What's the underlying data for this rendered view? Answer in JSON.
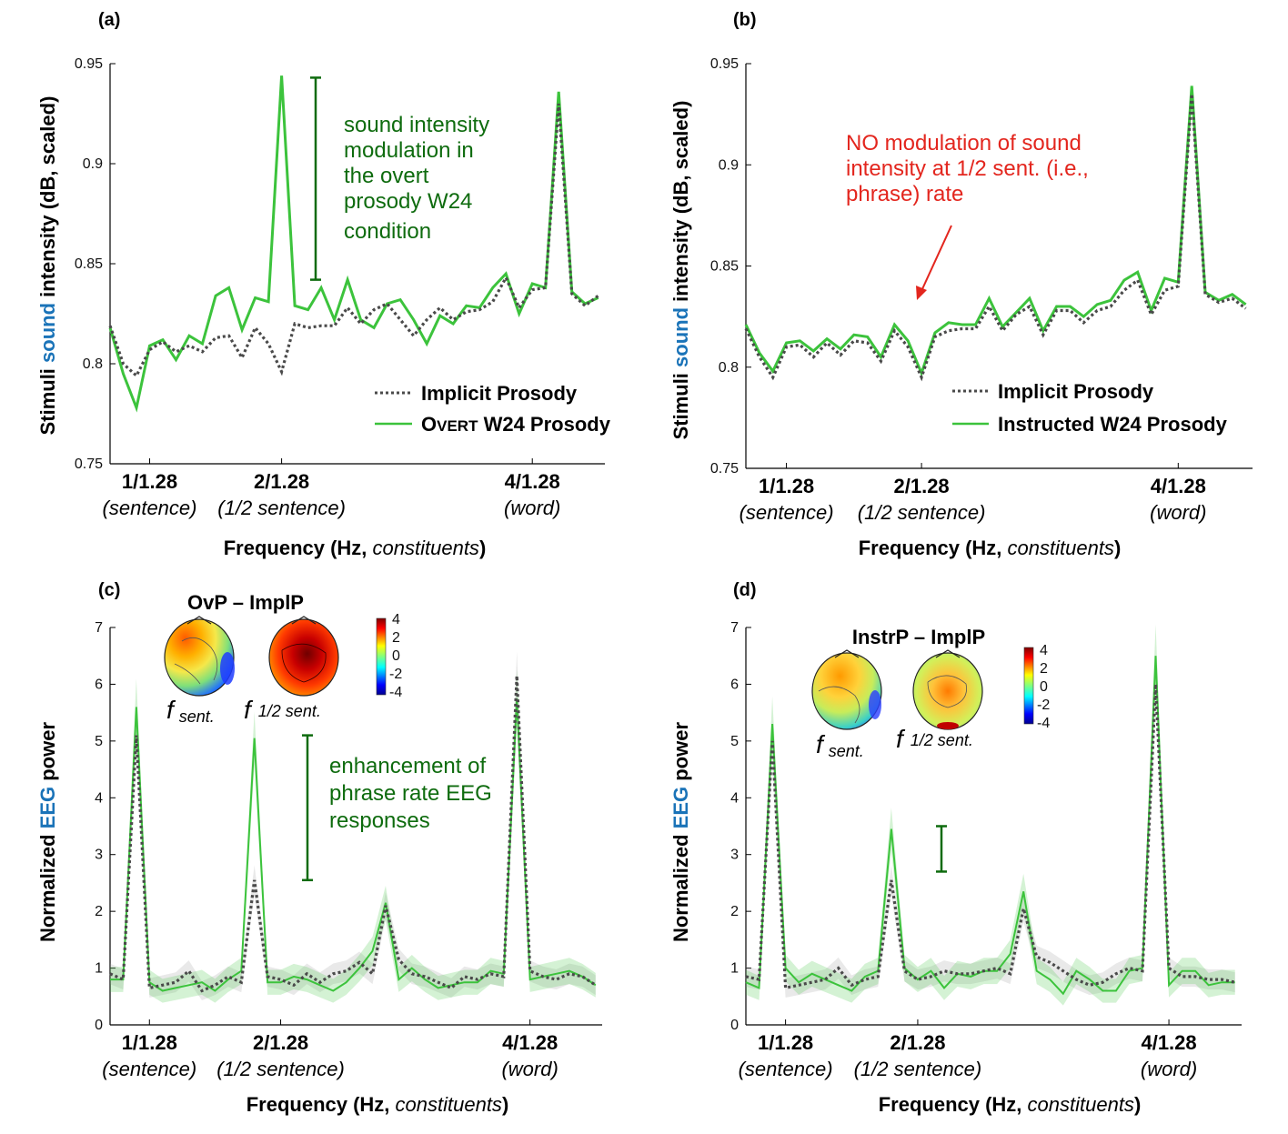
{
  "colors": {
    "green": "#3cc33c",
    "dark_green": "#0e6b0e",
    "gray": "#4a4a4a",
    "blue": "#1a73b8",
    "red": "#e3261e"
  },
  "chart_data": [
    {
      "panel_label": "(a)",
      "type": "line",
      "ylabel": {
        "pre": "Stimuli ",
        "colored": "sound",
        "post": " intensity (dB, scaled)"
      },
      "xlabel": {
        "bold": "Frequency (Hz, ",
        "italic": "constituents",
        "close": ")"
      },
      "ylim": [
        0.75,
        0.95
      ],
      "yticks": [
        "0.75",
        "0.8",
        "0.85",
        "0.9",
        "0.95"
      ],
      "xtick_labels": [
        {
          "value": "1/1.28",
          "sub": "(sentence)"
        },
        {
          "value": "2/1.28",
          "sub": "(1/2 sentence)"
        },
        {
          "value": "4/1.28",
          "sub": "(word)"
        }
      ],
      "x": [
        0.0,
        0.1,
        0.2,
        0.3,
        0.4,
        0.5,
        0.6,
        0.7,
        0.8,
        0.9,
        1.0,
        1.1,
        1.2,
        1.3,
        1.4,
        1.5,
        1.6,
        1.7,
        1.8,
        1.9,
        2.0,
        2.1,
        2.2,
        2.3,
        2.4,
        2.5,
        2.6,
        2.7,
        2.8,
        2.9,
        3.0,
        3.1,
        3.2,
        3.3,
        3.4,
        3.5,
        3.6,
        3.7
      ],
      "series": [
        {
          "name": "Implicit Prosody",
          "style": "dotted",
          "values": [
            0.819,
            0.8,
            0.794,
            0.807,
            0.811,
            0.806,
            0.809,
            0.806,
            0.813,
            0.814,
            0.803,
            0.818,
            0.81,
            0.796,
            0.82,
            0.818,
            0.819,
            0.819,
            0.828,
            0.82,
            0.827,
            0.83,
            0.822,
            0.814,
            0.822,
            0.828,
            0.822,
            0.826,
            0.827,
            0.831,
            0.843,
            0.828,
            0.837,
            0.838,
            0.93,
            0.835,
            0.829,
            0.834
          ]
        },
        {
          "name": "Overt W24 Prosody",
          "name_lead": "O",
          "name_caps": "VERT",
          "name_rest": " W24 Prosody",
          "style": "solid",
          "values": [
            0.818,
            0.795,
            0.778,
            0.809,
            0.812,
            0.802,
            0.814,
            0.81,
            0.834,
            0.838,
            0.817,
            0.833,
            0.831,
            0.944,
            0.829,
            0.827,
            0.838,
            0.822,
            0.842,
            0.822,
            0.818,
            0.83,
            0.832,
            0.822,
            0.81,
            0.824,
            0.82,
            0.829,
            0.828,
            0.838,
            0.845,
            0.825,
            0.84,
            0.838,
            0.936,
            0.836,
            0.83,
            0.833
          ]
        }
      ],
      "annotation": {
        "lines": [
          "sound intensity",
          "modulation in",
          "the overt",
          "prosody W24",
          "condition"
        ],
        "color": "dark_green",
        "bar": [
          0.842,
          0.943
        ]
      }
    },
    {
      "panel_label": "(b)",
      "type": "line",
      "ylabel": {
        "pre": "Stimuli ",
        "colored": "sound",
        "post": " intensity (dB, scaled)"
      },
      "xlabel": {
        "bold": "Frequency (Hz, ",
        "italic": "constituents",
        "close": ")"
      },
      "ylim": [
        0.75,
        0.95
      ],
      "yticks": [
        "0.75",
        "0.8",
        "0.85",
        "0.9",
        "0.95"
      ],
      "xtick_labels": [
        {
          "value": "1/1.28",
          "sub": "(sentence)"
        },
        {
          "value": "2/1.28",
          "sub": "(1/2 sentence)"
        },
        {
          "value": "4/1.28",
          "sub": "(word)"
        }
      ],
      "x": [
        0.0,
        0.1,
        0.2,
        0.3,
        0.4,
        0.5,
        0.6,
        0.7,
        0.8,
        0.9,
        1.0,
        1.1,
        1.2,
        1.3,
        1.4,
        1.5,
        1.6,
        1.7,
        1.8,
        1.9,
        2.0,
        2.1,
        2.2,
        2.3,
        2.4,
        2.5,
        2.6,
        2.7,
        2.8,
        2.9,
        3.0,
        3.1,
        3.2,
        3.3,
        3.4,
        3.5,
        3.6,
        3.7
      ],
      "series": [
        {
          "name": "Implicit Prosody",
          "style": "dotted",
          "values": [
            0.819,
            0.805,
            0.795,
            0.81,
            0.811,
            0.805,
            0.812,
            0.806,
            0.813,
            0.812,
            0.803,
            0.818,
            0.81,
            0.795,
            0.815,
            0.818,
            0.819,
            0.819,
            0.83,
            0.818,
            0.826,
            0.83,
            0.816,
            0.828,
            0.828,
            0.822,
            0.828,
            0.83,
            0.838,
            0.843,
            0.826,
            0.838,
            0.84,
            0.935,
            0.836,
            0.832,
            0.834,
            0.829
          ]
        },
        {
          "name": "Instructed W24 Prosody",
          "style": "solid",
          "values": [
            0.821,
            0.807,
            0.798,
            0.812,
            0.813,
            0.808,
            0.814,
            0.809,
            0.816,
            0.815,
            0.805,
            0.821,
            0.813,
            0.797,
            0.817,
            0.822,
            0.821,
            0.821,
            0.834,
            0.82,
            0.827,
            0.834,
            0.818,
            0.83,
            0.83,
            0.825,
            0.831,
            0.833,
            0.843,
            0.847,
            0.828,
            0.844,
            0.842,
            0.939,
            0.837,
            0.833,
            0.836,
            0.831
          ]
        }
      ],
      "annotation": {
        "lines": [
          "NO modulation of sound",
          "intensity at 1/2 sent. (i.e.,",
          "phrase) rate"
        ],
        "color": "red",
        "arrow_target": [
          1.2,
          0.836
        ]
      }
    },
    {
      "panel_label": "(c)",
      "type": "line",
      "ylabel": {
        "pre": "Normalized ",
        "colored": "EEG",
        "post": " power"
      },
      "xlabel": {
        "bold": "Frequency (Hz, ",
        "italic": "constituents",
        "close": ")"
      },
      "ylim": [
        0,
        7
      ],
      "yticks": [
        "0",
        "1",
        "2",
        "3",
        "4",
        "5",
        "6",
        "7"
      ],
      "xtick_labels": [
        {
          "value": "1/1.28",
          "sub": "(sentence)"
        },
        {
          "value": "2/1.28",
          "sub": "(1/2 sentence)"
        },
        {
          "value": "4/1.28",
          "sub": "(word)"
        }
      ],
      "x": [
        0.0,
        0.1,
        0.2,
        0.3,
        0.4,
        0.5,
        0.6,
        0.7,
        0.8,
        0.9,
        1.0,
        1.1,
        1.2,
        1.3,
        1.4,
        1.5,
        1.6,
        1.7,
        1.8,
        1.9,
        2.0,
        2.1,
        2.2,
        2.3,
        2.4,
        2.5,
        2.6,
        2.7,
        2.8,
        2.9,
        3.0,
        3.1,
        3.2,
        3.3,
        3.4,
        3.5,
        3.6,
        3.7
      ],
      "series": [
        {
          "name": "Implicit Prosody",
          "style": "dotted",
          "values": [
            0.9,
            0.8,
            5.1,
            0.65,
            0.7,
            0.75,
            0.95,
            0.6,
            0.7,
            0.85,
            0.75,
            2.55,
            0.85,
            0.8,
            0.7,
            0.9,
            0.75,
            0.9,
            0.95,
            1.1,
            0.9,
            2.1,
            1.15,
            0.9,
            0.85,
            0.75,
            0.65,
            0.85,
            0.8,
            0.9,
            0.85,
            6.15,
            0.95,
            0.85,
            0.8,
            0.9,
            0.85,
            0.7
          ]
        },
        {
          "name": "Overt W24 Prosody",
          "style": "solid",
          "values": [
            0.8,
            0.8,
            5.6,
            0.75,
            0.6,
            0.65,
            0.7,
            0.75,
            0.6,
            0.8,
            0.95,
            5.05,
            0.75,
            0.75,
            0.85,
            0.8,
            0.7,
            0.6,
            0.75,
            1.0,
            1.3,
            2.15,
            0.8,
            1.0,
            0.8,
            0.65,
            0.7,
            0.75,
            0.75,
            0.95,
            0.9,
            5.75,
            0.8,
            0.85,
            0.9,
            0.95,
            0.85,
            0.7
          ]
        }
      ],
      "annotation": {
        "lines": [
          "enhancement of",
          "phrase rate EEG",
          "responses"
        ],
        "color": "dark_green",
        "bar": [
          2.55,
          5.1
        ]
      },
      "topomaps": {
        "title": "OvP – ImplP",
        "labels": [
          {
            "f": "f",
            "sub": "sent."
          },
          {
            "f": "f",
            "sub": "1/2 sent."
          }
        ],
        "colorbar_ticks": [
          "4",
          "2",
          "0",
          "-2",
          "-4"
        ]
      }
    },
    {
      "panel_label": "(d)",
      "type": "line",
      "ylabel": {
        "pre": "Normalized ",
        "colored": "EEG",
        "post": " power"
      },
      "xlabel": {
        "bold": "Frequency (Hz, ",
        "italic": "constituents",
        "close": ")"
      },
      "ylim": [
        0,
        7
      ],
      "yticks": [
        "0",
        "1",
        "2",
        "3",
        "4",
        "5",
        "6",
        "7"
      ],
      "xtick_labels": [
        {
          "value": "1/1.28",
          "sub": "(sentence)"
        },
        {
          "value": "2/1.28",
          "sub": "(1/2 sentence)"
        },
        {
          "value": "4/1.28",
          "sub": "(word)"
        }
      ],
      "x": [
        0.0,
        0.1,
        0.2,
        0.3,
        0.4,
        0.5,
        0.6,
        0.7,
        0.8,
        0.9,
        1.0,
        1.1,
        1.2,
        1.3,
        1.4,
        1.5,
        1.6,
        1.7,
        1.8,
        1.9,
        2.0,
        2.1,
        2.2,
        2.3,
        2.4,
        2.5,
        2.6,
        2.7,
        2.8,
        2.9,
        3.0,
        3.1,
        3.2,
        3.3,
        3.4,
        3.5,
        3.6,
        3.7
      ],
      "series": [
        {
          "name": "Implicit Prosody",
          "style": "dotted",
          "values": [
            0.85,
            0.8,
            5.0,
            0.65,
            0.7,
            0.75,
            0.8,
            1.0,
            0.7,
            0.8,
            0.85,
            2.55,
            0.95,
            0.8,
            0.85,
            0.95,
            0.9,
            0.9,
            0.95,
            1.0,
            0.9,
            2.05,
            1.2,
            1.1,
            0.95,
            0.8,
            0.7,
            0.75,
            0.9,
            1.0,
            0.95,
            6.0,
            1.0,
            0.85,
            0.85,
            0.8,
            0.8,
            0.75
          ]
        },
        {
          "name": "Instructed W24 Prosody",
          "style": "solid",
          "values": [
            0.75,
            0.65,
            5.3,
            1.0,
            0.75,
            0.9,
            0.8,
            0.7,
            0.6,
            0.85,
            0.95,
            3.45,
            1.0,
            0.8,
            0.95,
            0.65,
            0.9,
            0.85,
            0.95,
            0.95,
            1.25,
            2.35,
            0.95,
            0.8,
            0.55,
            0.95,
            0.8,
            0.6,
            0.6,
            0.95,
            1.0,
            6.5,
            0.7,
            0.95,
            0.95,
            0.7,
            0.75,
            0.75
          ]
        }
      ],
      "annotation": {
        "color": "dark_green",
        "bar": [
          2.7,
          3.5
        ]
      },
      "topomaps": {
        "title": "InstrP – ImplP",
        "labels": [
          {
            "f": "f",
            "sub": "sent."
          },
          {
            "f": "f",
            "sub": "1/2 sent."
          }
        ],
        "colorbar_ticks": [
          "4",
          "2",
          "0",
          "-2",
          "-4"
        ]
      }
    }
  ]
}
